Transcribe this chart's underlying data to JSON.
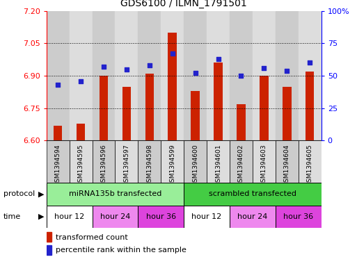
{
  "title": "GDS6100 / ILMN_1791501",
  "samples": [
    "GSM1394594",
    "GSM1394595",
    "GSM1394596",
    "GSM1394597",
    "GSM1394598",
    "GSM1394599",
    "GSM1394600",
    "GSM1394601",
    "GSM1394602",
    "GSM1394603",
    "GSM1394604",
    "GSM1394605"
  ],
  "bar_values": [
    6.67,
    6.68,
    6.9,
    6.85,
    6.91,
    7.1,
    6.83,
    6.96,
    6.77,
    6.9,
    6.85,
    6.92
  ],
  "dot_values_pct": [
    43,
    46,
    57,
    55,
    58,
    67,
    52,
    63,
    50,
    56,
    54,
    60
  ],
  "bar_bottom": 6.6,
  "ylim_left": [
    6.6,
    7.2
  ],
  "ylim_right": [
    0,
    100
  ],
  "yticks_left": [
    6.6,
    6.75,
    6.9,
    7.05,
    7.2
  ],
  "yticks_right": [
    0,
    25,
    50,
    75,
    100
  ],
  "ytick_labels_right": [
    "0",
    "25",
    "50",
    "75",
    "100%"
  ],
  "hlines": [
    6.75,
    6.9,
    7.05
  ],
  "bar_color": "#cc2200",
  "dot_color": "#2222cc",
  "protocol_groups": [
    {
      "label": "miRNA135b transfected",
      "start": 0,
      "end": 6,
      "color": "#99ee99"
    },
    {
      "label": "scrambled transfected",
      "start": 6,
      "end": 12,
      "color": "#44cc44"
    }
  ],
  "time_groups": [
    {
      "label": "hour 12",
      "start": 0,
      "end": 2,
      "color": "#ffffff"
    },
    {
      "label": "hour 24",
      "start": 2,
      "end": 4,
      "color": "#ee88ee"
    },
    {
      "label": "hour 36",
      "start": 4,
      "end": 6,
      "color": "#dd44dd"
    },
    {
      "label": "hour 12",
      "start": 6,
      "end": 8,
      "color": "#ffffff"
    },
    {
      "label": "hour 24",
      "start": 8,
      "end": 10,
      "color": "#ee88ee"
    },
    {
      "label": "hour 36",
      "start": 10,
      "end": 12,
      "color": "#dd44dd"
    }
  ],
  "legend_items": [
    {
      "label": "transformed count",
      "color": "#cc2200"
    },
    {
      "label": "percentile rank within the sample",
      "color": "#2222cc"
    }
  ],
  "sample_bg_color_a": "#cccccc",
  "sample_bg_color_b": "#dddddd"
}
